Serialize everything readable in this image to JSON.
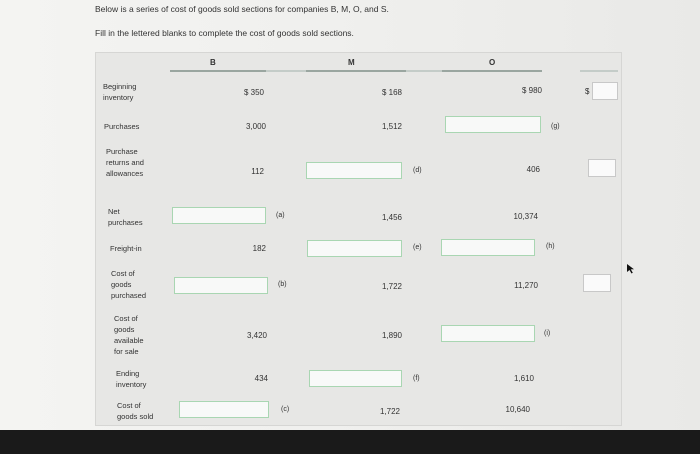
{
  "intro": {
    "line1": "Below is a series of cost of goods sold sections for companies B, M, O, and S.",
    "line2": "Fill in the lettered blanks to complete the cost of goods sold sections."
  },
  "headers": {
    "b": "B",
    "m": "M",
    "o": "O"
  },
  "rows": {
    "beginning_inventory": "Beginning inventory",
    "purchases": "Purchases",
    "purchase_returns": "Purchase returns and allowances",
    "net_purchases": "Net purchases",
    "freight_in": "Freight-in",
    "cost_goods_purchased": "Cost of goods purchased",
    "cost_goods_available": "Cost of goods available for sale",
    "ending_inventory": "Ending inventory",
    "cost_goods_sold": "Cost of goods sold"
  },
  "values": {
    "b_begin": "$ 350",
    "b_purch": "3,000",
    "b_returns": "112",
    "b_freight": "182",
    "b_avail": "3,420",
    "b_ending": "434",
    "m_begin": "$ 168",
    "m_purch": "1,512",
    "m_net": "1,456",
    "m_cgp": "1,722",
    "m_avail": "1,890",
    "m_cogs": "1,722",
    "o_begin": "$ 980",
    "o_returns": "406",
    "o_net": "10,374",
    "o_cgp": "11,270",
    "o_ending": "1,610",
    "o_cogs": "10,640",
    "s_dollar": "$"
  },
  "letters": {
    "a": "(a)",
    "b": "(b)",
    "c": "(c)",
    "d": "(d)",
    "e": "(e)",
    "f": "(f)",
    "g": "(g)",
    "h": "(h)",
    "i": "(i)"
  }
}
